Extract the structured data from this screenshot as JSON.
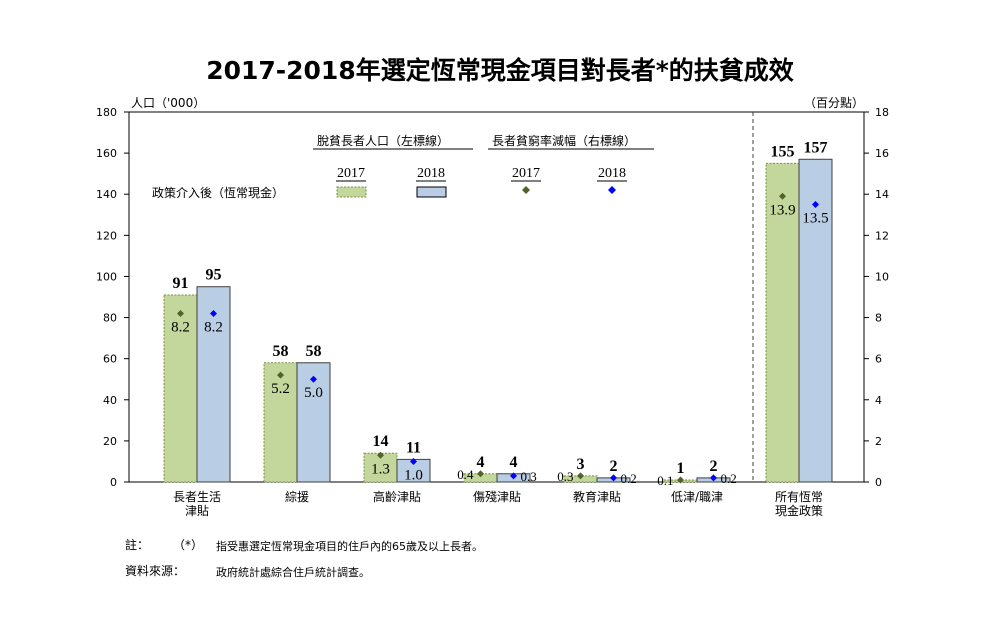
{
  "chart_data": {
    "type": "bar",
    "title": "2017-2018年選定恆常現金項目對長者*的扶貧成效",
    "left_axis_label": "人口（'000）",
    "right_axis_label": "（百分點）",
    "left_ylim": [
      0,
      180
    ],
    "right_ylim": [
      0,
      18
    ],
    "left_ticks": [
      "0",
      "20",
      "40",
      "60",
      "80",
      "100",
      "120",
      "140",
      "160",
      "180"
    ],
    "right_ticks": [
      "0",
      "2",
      "4",
      "6",
      "8",
      "10",
      "12",
      "14",
      "16",
      "18"
    ],
    "categories": [
      [
        "長者生活",
        "津貼"
      ],
      [
        "綜援"
      ],
      [
        "高齡津貼"
      ],
      [
        "傷殘津貼"
      ],
      [
        "教育津貼"
      ],
      [
        "低津/職津"
      ],
      [
        "所有恆常",
        "現金政策"
      ]
    ],
    "bar_series": [
      {
        "name": "2017",
        "color": "#c3d69b",
        "values": [
          91,
          58,
          14,
          4,
          3,
          1,
          155
        ],
        "labels": [
          "91",
          "58",
          "14",
          "4",
          "3",
          "1",
          "155"
        ]
      },
      {
        "name": "2018",
        "color": "#b9cde5",
        "values": [
          95,
          58,
          11,
          4,
          2,
          2,
          157
        ],
        "labels": [
          "95",
          "58",
          "11",
          "4",
          "2",
          "2",
          "157"
        ]
      }
    ],
    "point_series": [
      {
        "name": "2017",
        "color": "#4f6228",
        "values": [
          8.2,
          5.2,
          1.3,
          0.4,
          0.3,
          0.1,
          13.9
        ],
        "labels": [
          "8.2",
          "5.2",
          "1.3",
          "0.4",
          "0.3",
          "0.1",
          "13.9"
        ]
      },
      {
        "name": "2018",
        "color": "#0000ff",
        "values": [
          8.2,
          5.0,
          1.0,
          0.3,
          0.2,
          0.2,
          13.5
        ],
        "labels": [
          "8.2",
          "5.0",
          "1.0",
          "0.3",
          "0.2",
          "0.2",
          "13.5"
        ]
      }
    ],
    "legend": {
      "group_bar_title": "脫貧長者人口（左標線）",
      "group_point_title": "長者貧窮率減幅（右標線）",
      "row_label": "政策介入後（恆常現金）",
      "years": [
        "2017",
        "2018",
        "2017",
        "2018"
      ],
      "placement": "top"
    },
    "divider_after_category": 6,
    "grid": false
  },
  "notes": {
    "note_label": "註：",
    "note_marker": "（*）",
    "note_text": "指受惠選定恆常現金項目的住戶內的65歲及以上長者。",
    "source_label": "資料來源：",
    "source_text": "政府統計處綜合住戶統計調查。"
  }
}
